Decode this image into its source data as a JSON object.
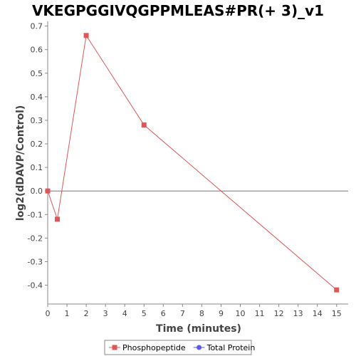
{
  "chart_data": {
    "type": "line",
    "title": "VKEGPGGIVQGPPMLEAS#PR(+ 3)_v1",
    "xlabel": "Time (minutes)",
    "ylabel": "log2(dDAVP/Control)",
    "xlim": [
      0,
      15.6
    ],
    "ylim": [
      -0.48,
      0.72
    ],
    "xticks": [
      0,
      1,
      2,
      3,
      4,
      5,
      6,
      7,
      8,
      9,
      10,
      11,
      12,
      13,
      14,
      15
    ],
    "yticks": [
      -0.4,
      -0.3,
      -0.2,
      -0.1,
      0.0,
      0.1,
      0.2,
      0.3,
      0.4,
      0.5,
      0.6,
      0.7
    ],
    "ytick_labels": [
      "-0.4",
      "-0.3",
      "-0.2",
      "-0.1",
      "0.0",
      "0.1",
      "0.2",
      "0.3",
      "0.4",
      "0.5",
      "0.6",
      "0.7"
    ],
    "zero_line": true,
    "grid": false,
    "legend_position": "bottom",
    "series": [
      {
        "name": "Phosphopeptide",
        "color": "#e05555",
        "marker": "square",
        "x": [
          0,
          0.5,
          2,
          5,
          15
        ],
        "y": [
          0.0,
          -0.12,
          0.66,
          0.28,
          -0.42
        ]
      },
      {
        "name": "Total Protein",
        "color": "#5a5ae6",
        "marker": "circle",
        "x": [],
        "y": []
      }
    ]
  }
}
